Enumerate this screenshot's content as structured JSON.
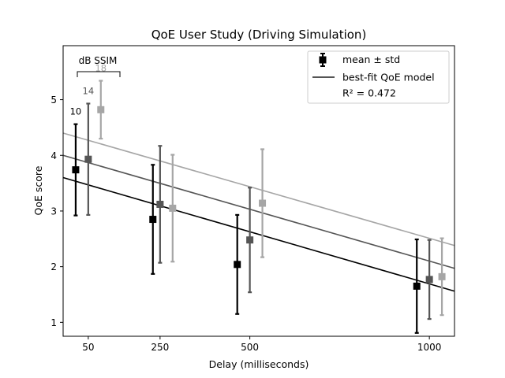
{
  "chart_data": {
    "type": "scatter",
    "title": "QoE User Study (Driving Simulation)",
    "xlabel": "Delay (milliseconds)",
    "ylabel": "QoE score",
    "x_ticks": [
      {
        "label": "50",
        "value": 50
      },
      {
        "label": "250",
        "value": 250
      },
      {
        "label": "500",
        "value": 500
      },
      {
        "label": "1000",
        "value": 1000
      }
    ],
    "y_ticks": [
      1,
      2,
      3,
      4,
      5
    ],
    "xlim": [
      -20,
      1070
    ],
    "ylim": [
      0.75,
      5.97
    ],
    "grid": false,
    "legend": {
      "placement": "top-right",
      "entries": [
        {
          "kind": "errorbar",
          "label": "mean ± std"
        },
        {
          "kind": "line",
          "label": "best-fit QoE model"
        },
        {
          "kind": "text",
          "label": "R² = 0.472"
        }
      ]
    },
    "group_annotation": {
      "label": "dB SSIM",
      "placement": "top-left"
    },
    "series": [
      {
        "name": "10",
        "color": "#000000",
        "points": [
          {
            "x": 15,
            "mean": 3.74,
            "std": 0.82
          },
          {
            "x": 230,
            "mean": 2.85,
            "std": 0.98
          },
          {
            "x": 465,
            "mean": 2.04,
            "std": 0.89
          },
          {
            "x": 965,
            "mean": 1.65,
            "std": 0.84
          }
        ],
        "fit": {
          "x": [
            -20,
            1070
          ],
          "y": [
            3.6,
            1.56
          ]
        }
      },
      {
        "name": "14",
        "color": "#555555",
        "points": [
          {
            "x": 50,
            "mean": 3.93,
            "std": 1.0
          },
          {
            "x": 250,
            "mean": 3.12,
            "std": 1.05
          },
          {
            "x": 500,
            "mean": 2.48,
            "std": 0.94
          },
          {
            "x": 1000,
            "mean": 1.77,
            "std": 0.71
          }
        ],
        "fit": {
          "x": [
            -20,
            1070
          ],
          "y": [
            4.0,
            1.97
          ]
        }
      },
      {
        "name": "18",
        "color": "#a6a6a6",
        "points": [
          {
            "x": 85,
            "mean": 4.82,
            "std": 0.52
          },
          {
            "x": 285,
            "mean": 3.05,
            "std": 0.96
          },
          {
            "x": 535,
            "mean": 3.14,
            "std": 0.97
          },
          {
            "x": 1035,
            "mean": 1.82,
            "std": 0.69
          }
        ],
        "fit": {
          "x": [
            -20,
            1070
          ],
          "y": [
            4.4,
            2.38
          ]
        }
      }
    ]
  }
}
